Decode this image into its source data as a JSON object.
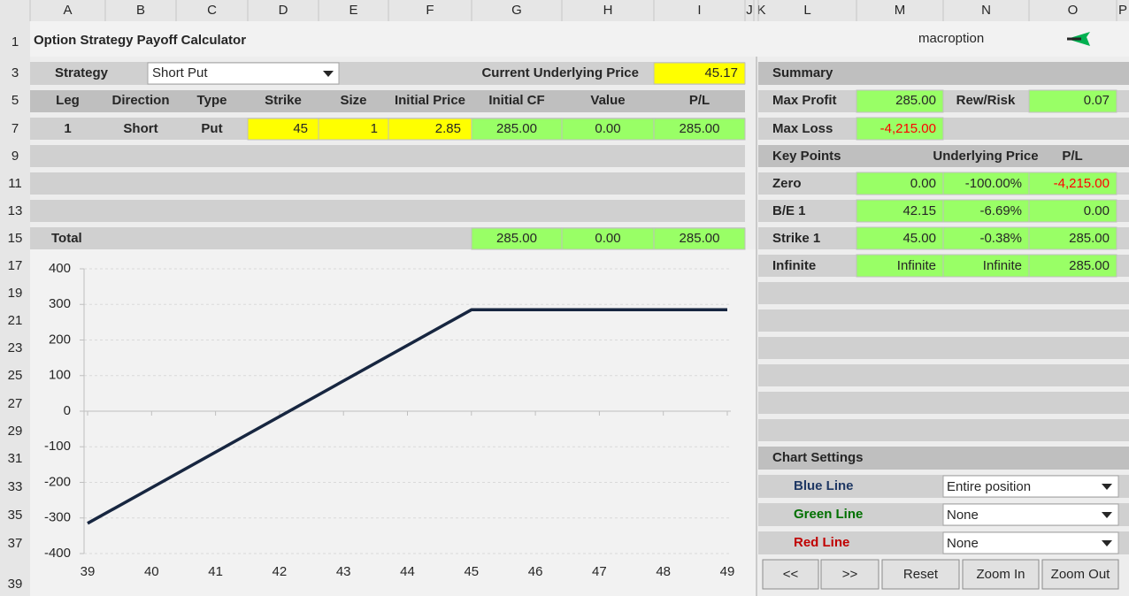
{
  "column_headers": [
    "A",
    "B",
    "C",
    "D",
    "E",
    "F",
    "G",
    "H",
    "I",
    "J",
    "K",
    "L",
    "M",
    "N",
    "O",
    "P"
  ],
  "row_headers": [
    "1",
    "3",
    "5",
    "7",
    "9",
    "11",
    "13",
    "15",
    "17",
    "19",
    "21",
    "23",
    "25",
    "27",
    "29",
    "31",
    "33",
    "35",
    "37",
    "39"
  ],
  "title": "Option Strategy Payoff Calculator",
  "logo": "macroption",
  "strategy": {
    "label": "Strategy",
    "selected": "Short Put"
  },
  "underlying": {
    "label": "Current Underlying Price",
    "value": "45.17"
  },
  "legs_table": {
    "headers": [
      "Leg",
      "Direction",
      "Type",
      "Strike",
      "Size",
      "Initial Price",
      "Initial CF",
      "Value",
      "P/L"
    ],
    "rows": [
      [
        "1",
        "Short",
        "Put",
        "45",
        "1",
        "2.85",
        "285.00",
        "0.00",
        "285.00"
      ]
    ],
    "total": {
      "label": "Total",
      "values": [
        "285.00",
        "0.00",
        "285.00"
      ]
    }
  },
  "summary": {
    "title": "Summary",
    "max_profit_label": "Max Profit",
    "max_profit": "285.00",
    "rew_risk_label": "Rew/Risk",
    "rew_risk": "0.07",
    "max_loss_label": "Max Loss",
    "max_loss": "-4,215.00"
  },
  "key_points": {
    "headers": [
      "Key Points",
      "Underlying Price",
      "P/L"
    ],
    "rows": [
      {
        "label": "Zero",
        "values": [
          "0.00",
          "-100.00%",
          "-4,215.00"
        ]
      },
      {
        "label": "B/E 1",
        "values": [
          "42.15",
          "-6.69%",
          "0.00"
        ]
      },
      {
        "label": "Strike 1",
        "values": [
          "45.00",
          "-0.38%",
          "285.00"
        ]
      },
      {
        "label": "Infinite",
        "values": [
          "Infinite",
          "Infinite",
          "285.00"
        ]
      }
    ]
  },
  "chart_settings": {
    "title": "Chart Settings",
    "rows": [
      {
        "label": "Blue Line",
        "value": "Entire position",
        "color": "#1f3864"
      },
      {
        "label": "Green Line",
        "value": "None",
        "color": "#007000"
      },
      {
        "label": "Red Line",
        "value": "None",
        "color": "#c00000"
      }
    ]
  },
  "buttons": [
    "<<",
    ">>",
    "Reset",
    "Zoom In",
    "Zoom Out"
  ],
  "chart": {
    "type": "line",
    "x": [
      39,
      45,
      49
    ],
    "values": [
      -315,
      285,
      285
    ],
    "color": "#172640",
    "xlim": [
      39,
      49
    ],
    "ylim": [
      -400,
      400
    ],
    "xticks": [
      39,
      40,
      41,
      42,
      43,
      44,
      45,
      46,
      47,
      48,
      49
    ],
    "yticks": [
      -400,
      -300,
      -200,
      -100,
      0,
      100,
      200,
      300,
      400
    ],
    "grid": true
  }
}
